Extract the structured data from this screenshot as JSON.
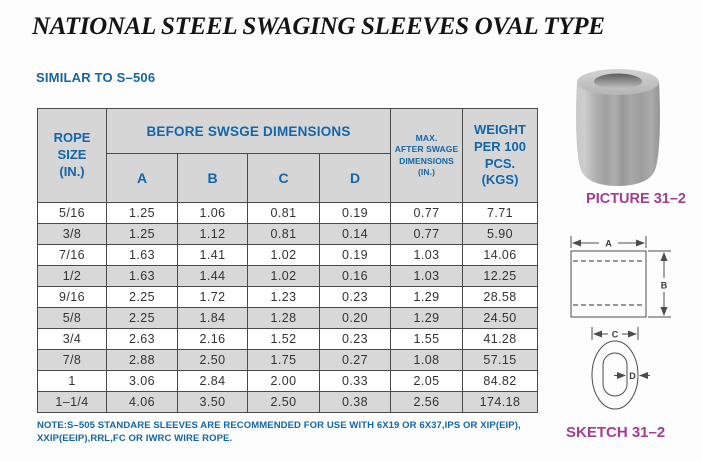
{
  "page": {
    "title": "NATIONAL STEEL SWAGING SLEEVES OVAL TYPE",
    "subtitle": "SIMILAR TO S–506",
    "note_line1": "NOTE:S–505 STANDARE SLEEVES ARE RECOMMENDED FOR USE WITH 6X19 OR 6X37,IPS OR XIP(EIP),",
    "note_line2": "XXIP(EEIP),RRL,FC OR IWRC WIRE ROPE."
  },
  "table": {
    "header": {
      "rope_l1": "ROPE",
      "rope_l2": "SIZE",
      "rope_l3": "(IN.)",
      "before_group": "BEFORE SWSGE DIMENSIONS",
      "col_a": "A",
      "col_b": "B",
      "col_c": "C",
      "col_d": "D",
      "max_l1": "MAX.",
      "max_l2": "AFTER SWAGE",
      "max_l3": "DIMENSIONS",
      "max_l4": "(IN.)",
      "weight_l1": "WEIGHT",
      "weight_l2": "PER 100",
      "weight_l3": "PCS.",
      "weight_l4": "(KGS)"
    },
    "rows": [
      {
        "size": "5/16",
        "a": "1.25",
        "b": "1.06",
        "c": "0.81",
        "d": "0.19",
        "max": "0.77",
        "weight": "7.71"
      },
      {
        "size": "3/8",
        "a": "1.25",
        "b": "1.12",
        "c": "0.81",
        "d": "0.14",
        "max": "0.77",
        "weight": "5.90"
      },
      {
        "size": "7/16",
        "a": "1.63",
        "b": "1.41",
        "c": "1.02",
        "d": "0.19",
        "max": "1.03",
        "weight": "14.06"
      },
      {
        "size": "1/2",
        "a": "1.63",
        "b": "1.44",
        "c": "1.02",
        "d": "0.16",
        "max": "1.03",
        "weight": "12.25"
      },
      {
        "size": "9/16",
        "a": "2.25",
        "b": "1.72",
        "c": "1.23",
        "d": "0.23",
        "max": "1.29",
        "weight": "28.58"
      },
      {
        "size": "5/8",
        "a": "2.25",
        "b": "1.84",
        "c": "1.28",
        "d": "0.20",
        "max": "1.29",
        "weight": "24.50"
      },
      {
        "size": "3/4",
        "a": "2.63",
        "b": "2.16",
        "c": "1.52",
        "d": "0.23",
        "max": "1.55",
        "weight": "41.28"
      },
      {
        "size": "7/8",
        "a": "2.88",
        "b": "2.50",
        "c": "1.75",
        "d": "0.27",
        "max": "1.08",
        "weight": "57.15"
      },
      {
        "size": "1",
        "a": "3.06",
        "b": "2.84",
        "c": "2.00",
        "d": "0.33",
        "max": "2.05",
        "weight": "84.82"
      },
      {
        "size": "1–1/4",
        "a": "4.06",
        "b": "3.50",
        "c": "2.50",
        "d": "0.38",
        "max": "2.56",
        "weight": "174.18"
      }
    ]
  },
  "figures": {
    "picture_label": "PICTURE 31–2",
    "sketch_label": "SKETCH 31–2",
    "dim_a": "A",
    "dim_b": "B",
    "dim_c": "C",
    "dim_d": "D"
  },
  "colors": {
    "heading_blue": "#1266ab",
    "label_magenta": "#a83a93",
    "header_bg": "#d6d6d6",
    "row_alt_bg": "#d8d8d8",
    "table_border": "#4a4a4a",
    "cell_text": "#333333"
  }
}
